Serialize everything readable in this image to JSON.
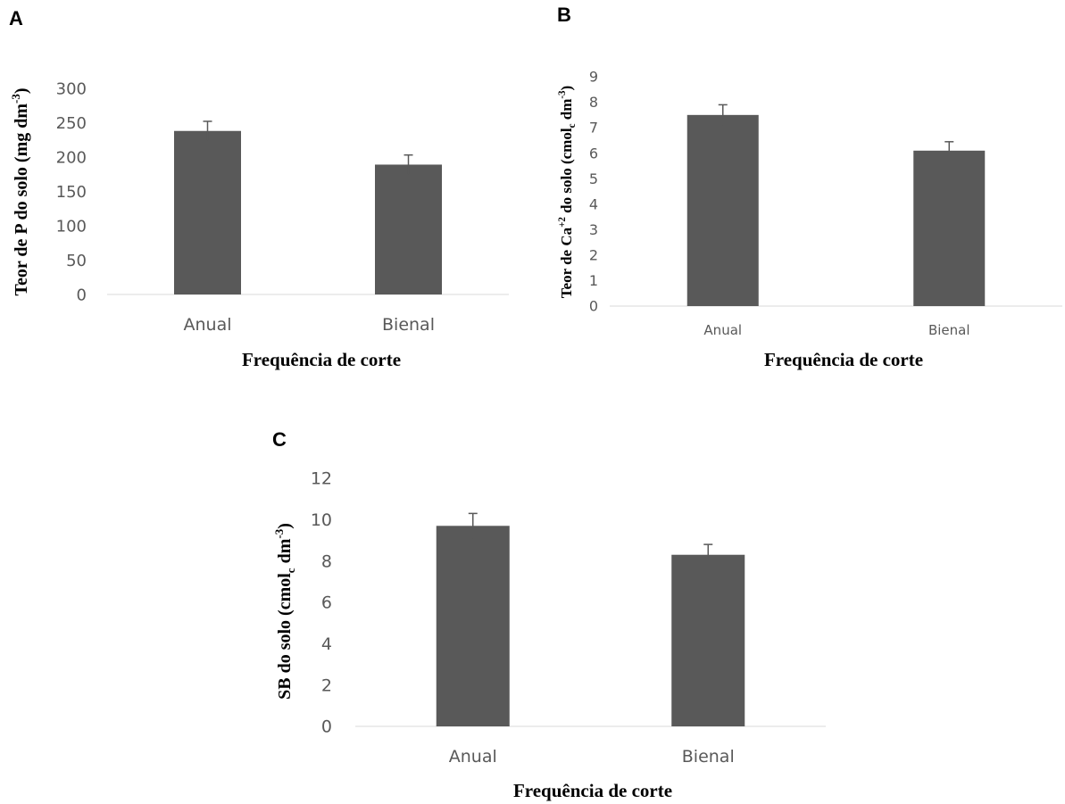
{
  "chart_data": [
    {
      "type": "bar",
      "panel": "A",
      "categories": [
        "Anual",
        "Bienal"
      ],
      "values": [
        238,
        189
      ],
      "errors": [
        14,
        14
      ],
      "ylim": [
        0,
        300
      ],
      "yticks": [
        0,
        50,
        100,
        150,
        200,
        250,
        300
      ],
      "xlabel": "Frequência de corte",
      "ylabel": {
        "base": "Teor de P do solo (mg dm",
        "sup": "-3",
        "end": ")"
      },
      "bar_color": "#595959",
      "grid": false
    },
    {
      "type": "bar",
      "panel": "B",
      "categories": [
        "Anual",
        "Bienal"
      ],
      "values": [
        7.5,
        6.1
      ],
      "errors": [
        0.4,
        0.35
      ],
      "ylim": [
        0,
        9
      ],
      "yticks": [
        0,
        1,
        2,
        3,
        4,
        5,
        6,
        7,
        8,
        9
      ],
      "xlabel": "Frequência de corte",
      "ylabel": {
        "base": "Teor de Ca",
        "sup": "+2",
        "mid": " do solo (cmol",
        "sub": "c",
        "mid2": " dm",
        "sup2": "-3",
        "end": ")"
      },
      "bar_color": "#595959",
      "grid": false
    },
    {
      "type": "bar",
      "panel": "C",
      "categories": [
        "Anual",
        "Bienal"
      ],
      "values": [
        9.7,
        8.3
      ],
      "errors": [
        0.6,
        0.5
      ],
      "ylim": [
        0,
        12
      ],
      "yticks": [
        0,
        2,
        4,
        6,
        8,
        10,
        12
      ],
      "xlabel": "Frequência de corte",
      "ylabel": {
        "base": "SB do solo (cmol",
        "sub": "c",
        "mid": " dm",
        "sup": "-3",
        "end": ")"
      },
      "bar_color": "#595959",
      "grid": false
    }
  ]
}
